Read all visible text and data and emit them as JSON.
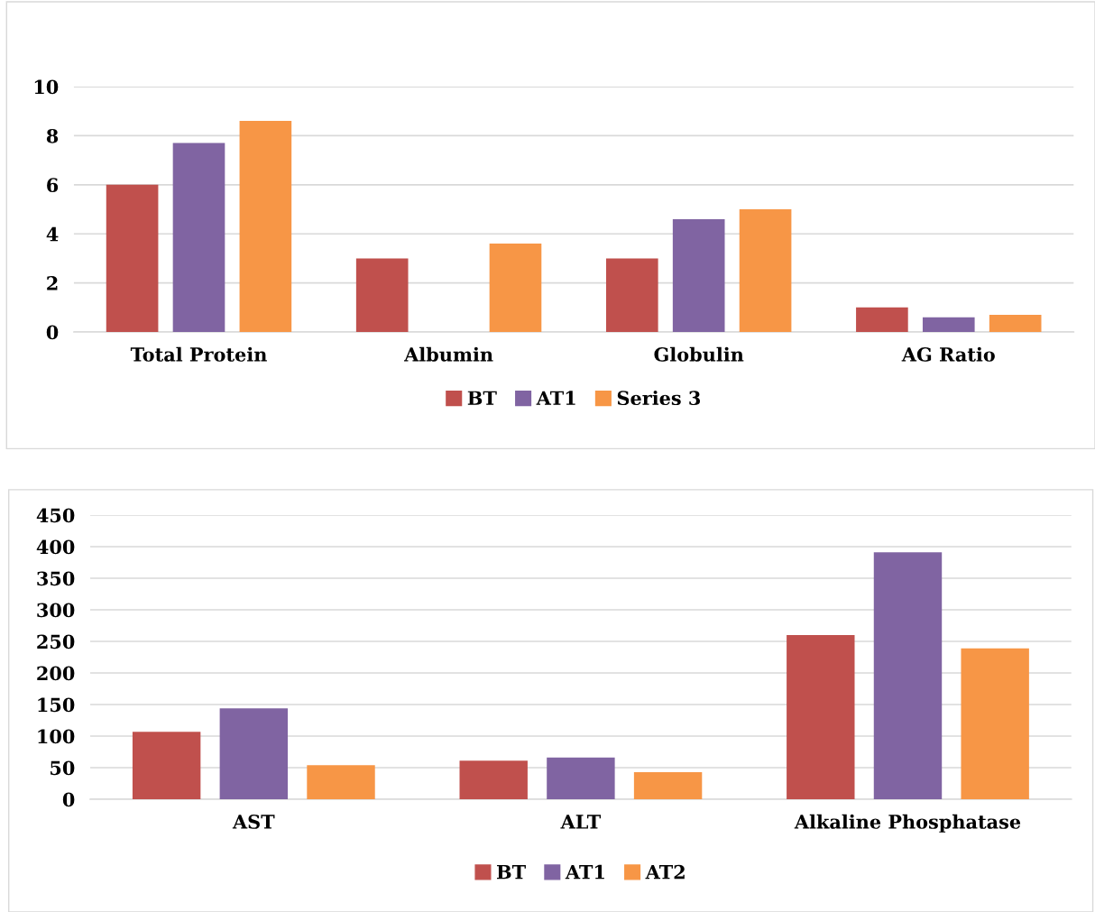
{
  "chart_data": [
    {
      "type": "bar",
      "categories": [
        "Total Protein",
        "Albumin",
        "Globulin",
        "AG Ratio"
      ],
      "series": [
        {
          "name": "BT",
          "color": "#c0504d",
          "values": [
            6.0,
            3.0,
            3.0,
            1.0
          ]
        },
        {
          "name": "AT1",
          "color": "#8064a2",
          "values": [
            7.7,
            null,
            4.6,
            0.6
          ]
        },
        {
          "name": "Series 3",
          "color": "#f79646",
          "values": [
            8.6,
            3.6,
            5.0,
            0.7
          ]
        }
      ],
      "ylim": [
        0,
        10
      ],
      "yticks": [
        0,
        2,
        4,
        6,
        8,
        10
      ],
      "grid": "y",
      "legend": "bottom"
    },
    {
      "type": "bar",
      "categories": [
        "AST",
        "ALT",
        "Alkaline Phosphatase"
      ],
      "series": [
        {
          "name": "BT",
          "color": "#c0504d",
          "values": [
            107,
            61,
            260
          ]
        },
        {
          "name": "AT1",
          "color": "#8064a2",
          "values": [
            144,
            66,
            391
          ]
        },
        {
          "name": "AT2",
          "color": "#f79646",
          "values": [
            54,
            43,
            239
          ]
        }
      ],
      "ylim": [
        0,
        450
      ],
      "yticks": [
        0,
        50,
        100,
        150,
        200,
        250,
        300,
        350,
        400,
        450
      ],
      "grid": "y",
      "legend": "bottom"
    }
  ]
}
